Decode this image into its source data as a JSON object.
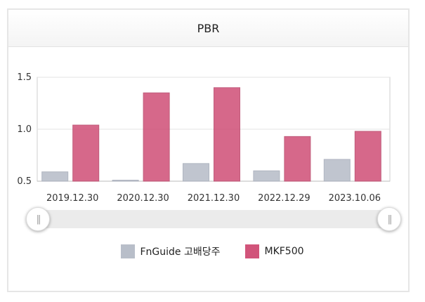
{
  "chart_data": {
    "type": "bar",
    "title": "PBR",
    "categories": [
      "2019.12.30",
      "2020.12.30",
      "2021.12.30",
      "2022.12.29",
      "2023.10.06"
    ],
    "series": [
      {
        "name": "FnGuide 고배당주",
        "color": "#b8bec9",
        "values": [
          0.59,
          0.51,
          0.67,
          0.6,
          0.71
        ]
      },
      {
        "name": "MKF500",
        "color": "#d1547a",
        "values": [
          1.04,
          1.35,
          1.4,
          0.93,
          0.98
        ]
      }
    ],
    "ylim": [
      0.5,
      1.5
    ],
    "yticks": [
      "0.5",
      "1.0",
      "1.5"
    ],
    "grid": true,
    "legend_position": "bottom-center"
  },
  "slider": {
    "left_handle": "||",
    "right_handle": "||"
  }
}
